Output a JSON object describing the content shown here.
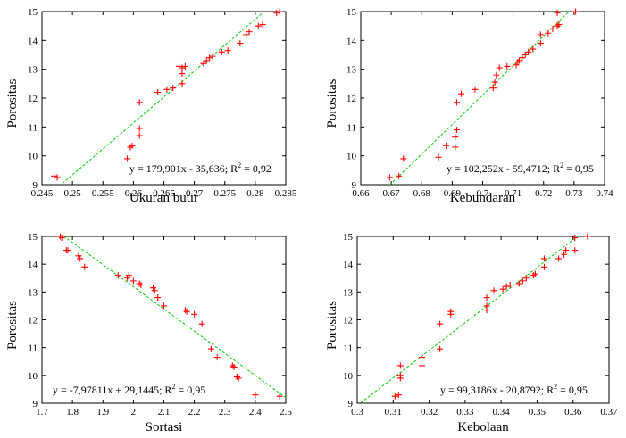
{
  "chart_data": [
    {
      "type": "scatter",
      "xlabel": "Ukuran butir",
      "ylabel": "Porositas",
      "xlim": [
        0.245,
        0.285
      ],
      "ylim": [
        9,
        15
      ],
      "xticks": [
        "0.245",
        "0.25",
        "0.255",
        "0.26",
        "0.265",
        "0.27",
        "0.275",
        "0.28",
        "0.285"
      ],
      "yticks": [
        "9",
        "10",
        "11",
        "12",
        "13",
        "14",
        "15"
      ],
      "equation": "y = 179,901x - 35,636; R",
      "r2_value": " = 0,92",
      "sup": "2",
      "marker_color": "#ff0000",
      "trend_color": "#00cc00",
      "trend": {
        "slope": 179.901,
        "intercept": -35.636
      },
      "points": [
        [
          0.247,
          9.3
        ],
        [
          0.2475,
          9.25
        ],
        [
          0.259,
          9.9
        ],
        [
          0.2595,
          10.3
        ],
        [
          0.2598,
          10.35
        ],
        [
          0.261,
          10.7
        ],
        [
          0.261,
          10.95
        ],
        [
          0.261,
          11.85
        ],
        [
          0.264,
          12.2
        ],
        [
          0.2655,
          12.3
        ],
        [
          0.2665,
          12.35
        ],
        [
          0.268,
          12.5
        ],
        [
          0.268,
          12.85
        ],
        [
          0.268,
          13.05
        ],
        [
          0.2675,
          13.1
        ],
        [
          0.2685,
          13.1
        ],
        [
          0.2715,
          13.2
        ],
        [
          0.272,
          13.3
        ],
        [
          0.2725,
          13.4
        ],
        [
          0.273,
          13.45
        ],
        [
          0.2745,
          13.6
        ],
        [
          0.2755,
          13.65
        ],
        [
          0.2775,
          13.9
        ],
        [
          0.2785,
          14.2
        ],
        [
          0.279,
          14.3
        ],
        [
          0.2805,
          14.5
        ],
        [
          0.2812,
          14.55
        ],
        [
          0.2835,
          14.95
        ],
        [
          0.284,
          15.0
        ]
      ]
    },
    {
      "type": "scatter",
      "xlabel": "Kebundaran",
      "ylabel": "Porositas",
      "xlim": [
        0.66,
        0.74
      ],
      "ylim": [
        9,
        15
      ],
      "xticks": [
        "0.66",
        "0.67",
        "0.68",
        "0.69",
        "0.7",
        "0.71",
        "0.72",
        "0.73",
        "0.74"
      ],
      "yticks": [
        "9",
        "10",
        "11",
        "12",
        "13",
        "14",
        "15"
      ],
      "equation": "y = 102,252x - 59,4712; R",
      "r2_value": " = 0,95",
      "sup": "2",
      "marker_color": "#ff0000",
      "trend_color": "#00cc00",
      "trend": {
        "slope": 102.252,
        "intercept": -59.4712
      },
      "points": [
        [
          0.6695,
          9.25
        ],
        [
          0.6725,
          9.3
        ],
        [
          0.674,
          9.9
        ],
        [
          0.6855,
          9.95
        ],
        [
          0.688,
          10.35
        ],
        [
          0.691,
          10.3
        ],
        [
          0.691,
          10.65
        ],
        [
          0.6915,
          10.9
        ],
        [
          0.6915,
          11.85
        ],
        [
          0.693,
          12.15
        ],
        [
          0.6975,
          12.3
        ],
        [
          0.7035,
          12.35
        ],
        [
          0.704,
          12.55
        ],
        [
          0.7045,
          12.8
        ],
        [
          0.7055,
          13.05
        ],
        [
          0.708,
          13.1
        ],
        [
          0.711,
          13.15
        ],
        [
          0.7115,
          13.25
        ],
        [
          0.712,
          13.3
        ],
        [
          0.713,
          13.4
        ],
        [
          0.714,
          13.5
        ],
        [
          0.715,
          13.6
        ],
        [
          0.7165,
          13.7
        ],
        [
          0.719,
          13.9
        ],
        [
          0.719,
          14.2
        ],
        [
          0.7215,
          14.25
        ],
        [
          0.723,
          14.4
        ],
        [
          0.7245,
          14.5
        ],
        [
          0.725,
          14.55
        ],
        [
          0.7245,
          14.95
        ],
        [
          0.7305,
          15.0
        ]
      ]
    },
    {
      "type": "scatter",
      "xlabel": "Sortasi",
      "ylabel": "Porositas",
      "xlim": [
        1.7,
        2.5
      ],
      "ylim": [
        9,
        15
      ],
      "xticks": [
        "1.7",
        "1.8",
        "1.9",
        "2",
        "2.1",
        "2.2",
        "2.3",
        "2.4",
        "2.5"
      ],
      "yticks": [
        "9",
        "10",
        "11",
        "12",
        "13",
        "14",
        "15"
      ],
      "equation": "y = -7,97811x + 29,1445; R",
      "r2_value": " = 0,95",
      "sup": "2",
      "marker_color": "#ff0000",
      "trend_color": "#00cc00",
      "trend": {
        "slope": -7.97811,
        "intercept": 29.1445
      },
      "points": [
        [
          1.76,
          15.0
        ],
        [
          1.765,
          14.95
        ],
        [
          1.78,
          14.5
        ],
        [
          1.785,
          14.5
        ],
        [
          1.82,
          14.3
        ],
        [
          1.825,
          14.2
        ],
        [
          1.84,
          13.9
        ],
        [
          1.95,
          13.6
        ],
        [
          1.98,
          13.5
        ],
        [
          1.985,
          13.6
        ],
        [
          2.0,
          13.4
        ],
        [
          2.02,
          13.3
        ],
        [
          2.025,
          13.25
        ],
        [
          2.065,
          13.15
        ],
        [
          2.07,
          13.05
        ],
        [
          2.08,
          12.8
        ],
        [
          2.1,
          12.5
        ],
        [
          2.17,
          12.35
        ],
        [
          2.175,
          12.3
        ],
        [
          2.2,
          12.2
        ],
        [
          2.225,
          11.85
        ],
        [
          2.255,
          10.95
        ],
        [
          2.275,
          10.65
        ],
        [
          2.325,
          10.35
        ],
        [
          2.33,
          10.3
        ],
        [
          2.34,
          9.95
        ],
        [
          2.345,
          9.9
        ],
        [
          2.4,
          9.3
        ],
        [
          2.48,
          9.25
        ]
      ]
    },
    {
      "type": "scatter",
      "xlabel": "Kebolaan",
      "ylabel": "Porositas",
      "xlim": [
        0.3,
        0.37
      ],
      "ylim": [
        9,
        15
      ],
      "xticks": [
        "0.3",
        "0.31",
        "0.32",
        "0.33",
        "0.34",
        "0.35",
        "0.36",
        "0.37"
      ],
      "yticks": [
        "9",
        "10",
        "11",
        "12",
        "13",
        "14",
        "15"
      ],
      "equation": "y = 99,3186x - 20,8792; R",
      "r2_value": " = 0,95",
      "sup": "2",
      "marker_color": "#ff0000",
      "trend_color": "#00cc00",
      "trend": {
        "slope": 99.3186,
        "intercept": -20.8792
      },
      "points": [
        [
          0.3105,
          9.25
        ],
        [
          0.3115,
          9.3
        ],
        [
          0.312,
          9.9
        ],
        [
          0.312,
          10.0
        ],
        [
          0.312,
          10.35
        ],
        [
          0.318,
          10.35
        ],
        [
          0.318,
          10.65
        ],
        [
          0.323,
          10.95
        ],
        [
          0.323,
          11.85
        ],
        [
          0.326,
          12.2
        ],
        [
          0.326,
          12.3
        ],
        [
          0.336,
          12.35
        ],
        [
          0.336,
          12.5
        ],
        [
          0.336,
          12.8
        ],
        [
          0.338,
          13.05
        ],
        [
          0.3405,
          13.1
        ],
        [
          0.3415,
          13.2
        ],
        [
          0.3425,
          13.25
        ],
        [
          0.345,
          13.3
        ],
        [
          0.346,
          13.4
        ],
        [
          0.347,
          13.5
        ],
        [
          0.349,
          13.6
        ],
        [
          0.3495,
          13.65
        ],
        [
          0.352,
          13.9
        ],
        [
          0.352,
          14.2
        ],
        [
          0.356,
          14.2
        ],
        [
          0.3575,
          14.35
        ],
        [
          0.358,
          14.5
        ],
        [
          0.3605,
          14.5
        ],
        [
          0.3605,
          14.95
        ],
        [
          0.364,
          15.0
        ]
      ]
    }
  ]
}
